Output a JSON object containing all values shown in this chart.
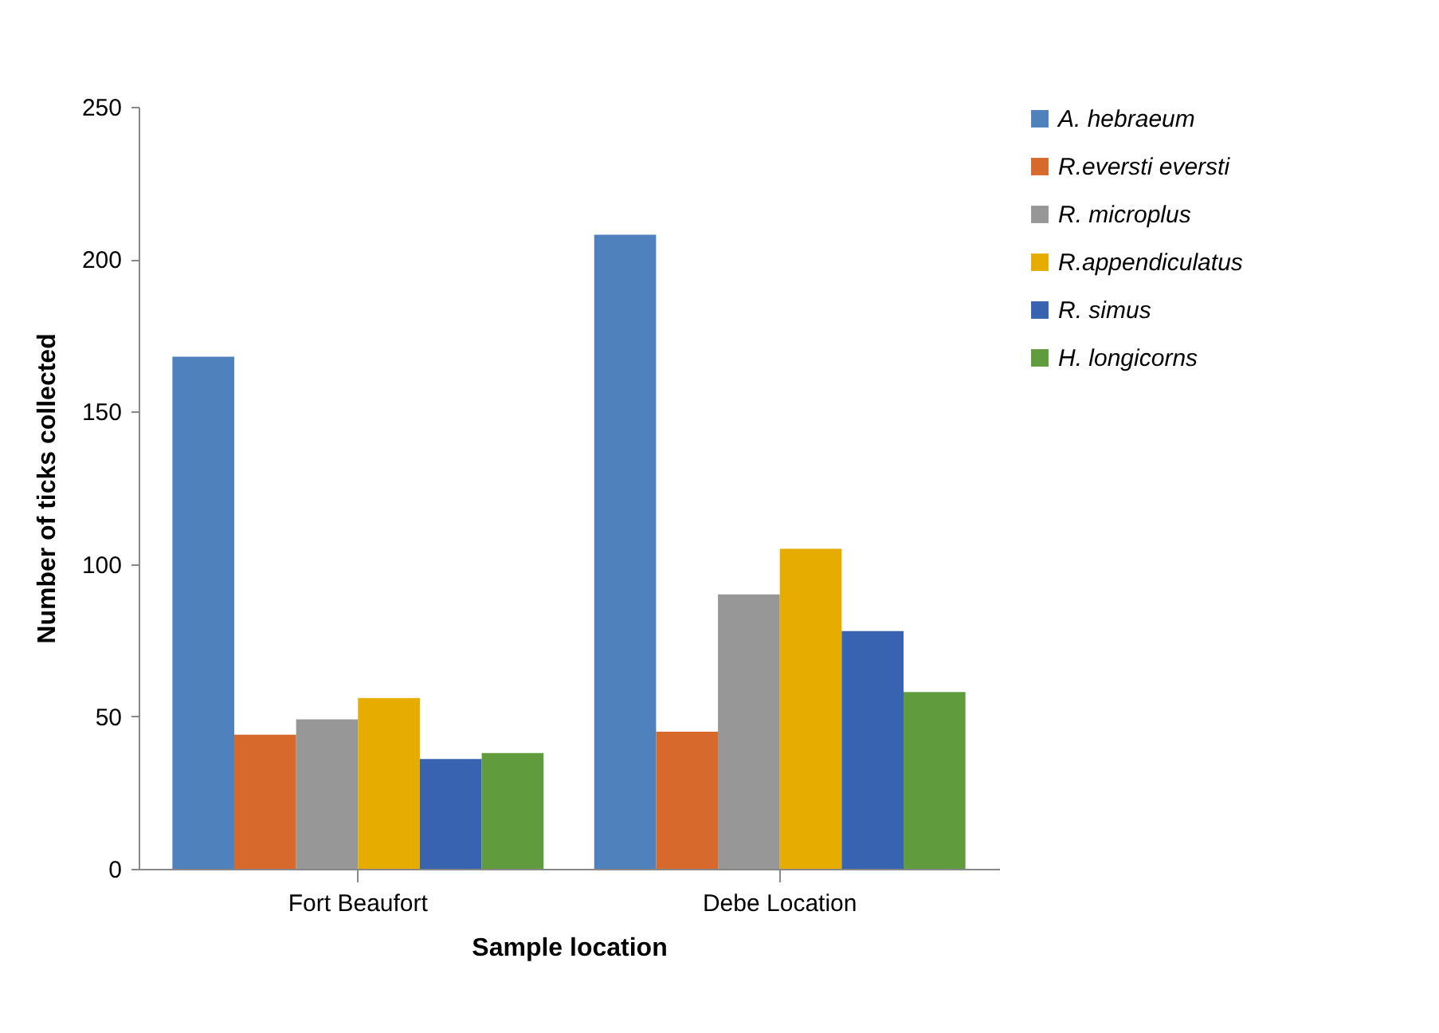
{
  "chart_data": {
    "type": "bar",
    "xlabel": "Sample location",
    "ylabel": "Number of ticks collected",
    "categories": [
      "Fort Beaufort",
      "Debe Location"
    ],
    "series": [
      {
        "name": "A. hebraeum",
        "color": "#4f81bd",
        "values": [
          168,
          208
        ]
      },
      {
        "name": "R.eversti eversti",
        "color": "#d7692c",
        "values": [
          44,
          45
        ]
      },
      {
        "name": "R. microplus",
        "color": "#979797",
        "values": [
          49,
          90
        ]
      },
      {
        "name": "R.appendiculatus",
        "color": "#e6ad00",
        "values": [
          56,
          105
        ]
      },
      {
        "name": "R. simus",
        "color": "#3863b0",
        "values": [
          36,
          78
        ]
      },
      {
        "name": "H. longicorns",
        "color": "#609c3d",
        "values": [
          38,
          58
        ]
      }
    ],
    "ylim": [
      0,
      250
    ],
    "yticks": [
      0,
      50,
      100,
      150,
      200,
      250
    ],
    "grid": false,
    "legend": "right"
  }
}
